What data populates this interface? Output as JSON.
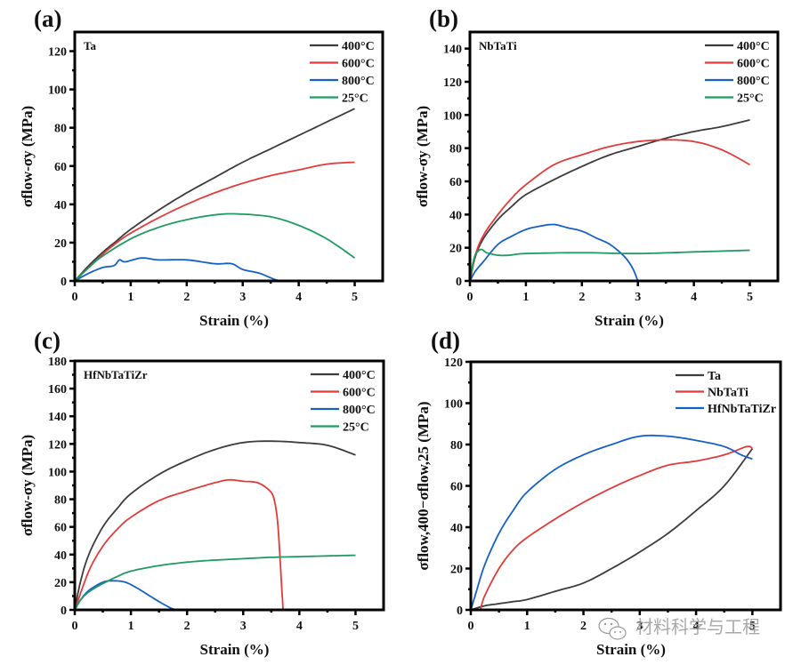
{
  "figure": {
    "watermark": "材料科学与工程",
    "colors": {
      "400": "#3c3c3c",
      "600": "#e23b3b",
      "800": "#1560c8",
      "25": "#1f9a62"
    }
  },
  "chart_data": [
    {
      "type": "line",
      "panel_label": "(a)",
      "inset_label": "Ta",
      "title": "",
      "xlabel": "Strain (%)",
      "ylabel": "σflow-σy (MPa)",
      "xlim": [
        0,
        5.5
      ],
      "ylim": [
        0,
        130
      ],
      "xticks": [
        0,
        1,
        2,
        3,
        4,
        5
      ],
      "yticks": [
        0,
        20,
        40,
        60,
        80,
        100,
        120
      ],
      "legend_position": "top-right",
      "series": [
        {
          "name": "400°C",
          "color": "#3c3c3c",
          "x": [
            0,
            0.25,
            0.5,
            0.75,
            1,
            1.5,
            2,
            2.5,
            3,
            3.5,
            4,
            4.5,
            5
          ],
          "y": [
            0,
            8,
            15,
            21,
            27,
            37,
            46,
            54,
            62,
            69,
            76,
            83,
            90
          ]
        },
        {
          "name": "600°C",
          "color": "#e23b3b",
          "x": [
            0,
            0.25,
            0.5,
            0.75,
            1,
            1.5,
            2,
            2.5,
            3,
            3.5,
            4,
            4.5,
            5
          ],
          "y": [
            0,
            7,
            14,
            20,
            25,
            33,
            40,
            46,
            51,
            55,
            58,
            61,
            62
          ]
        },
        {
          "name": "800°C",
          "color": "#1560c8",
          "x": [
            0,
            0.25,
            0.5,
            0.7,
            0.8,
            0.9,
            1.2,
            1.5,
            2,
            2.5,
            2.8,
            3,
            3.3,
            3.6,
            3.75
          ],
          "y": [
            0,
            4,
            7,
            8,
            11,
            10,
            12,
            11,
            11,
            9,
            9,
            6,
            4,
            0.5,
            0
          ]
        },
        {
          "name": "25°C",
          "color": "#1f9a62",
          "x": [
            0,
            0.25,
            0.5,
            1,
            1.5,
            2,
            2.5,
            2.9,
            3.5,
            4,
            4.5,
            5
          ],
          "y": [
            0,
            7,
            13,
            22,
            28,
            32,
            34.5,
            35,
            33.5,
            29,
            22,
            12
          ]
        }
      ]
    },
    {
      "type": "line",
      "panel_label": "(b)",
      "inset_label": "NbTaTi",
      "title": "",
      "xlabel": "Strain (%)",
      "ylabel": "σflow-σy (MPa)",
      "xlim": [
        0,
        5.5
      ],
      "ylim": [
        0,
        150
      ],
      "xticks": [
        0,
        1,
        2,
        3,
        4,
        5
      ],
      "yticks": [
        0,
        20,
        40,
        60,
        80,
        100,
        120,
        140
      ],
      "legend_position": "top-right",
      "series": [
        {
          "name": "400°C",
          "color": "#3c3c3c",
          "x": [
            0,
            0.1,
            0.25,
            0.5,
            0.75,
            1,
            1.5,
            2,
            2.5,
            3,
            3.5,
            4,
            4.5,
            5
          ],
          "y": [
            0,
            15,
            26,
            37,
            45,
            52,
            61,
            69,
            76,
            81,
            86,
            90,
            93,
            97
          ]
        },
        {
          "name": "600°C",
          "color": "#e23b3b",
          "x": [
            0,
            0.1,
            0.25,
            0.5,
            0.75,
            1,
            1.5,
            2,
            2.5,
            3,
            3.5,
            4,
            4.5,
            5
          ],
          "y": [
            0,
            16,
            28,
            40,
            50,
            58,
            70,
            76,
            81,
            84,
            85,
            84,
            79,
            70
          ]
        },
        {
          "name": "800°C",
          "color": "#1560c8",
          "x": [
            0,
            0.1,
            0.25,
            0.5,
            0.75,
            1,
            1.25,
            1.5,
            1.75,
            2,
            2.25,
            2.5,
            2.75,
            2.9,
            3.0
          ],
          "y": [
            0,
            6,
            12,
            22,
            27,
            31,
            33,
            34,
            32,
            30,
            26,
            22,
            15,
            8,
            0
          ]
        },
        {
          "name": "25°C",
          "color": "#1f9a62",
          "x": [
            0,
            0.05,
            0.1,
            0.2,
            0.3,
            0.5,
            0.7,
            1,
            2,
            3,
            4,
            5
          ],
          "y": [
            0,
            10,
            16,
            19,
            17,
            15.5,
            15.5,
            16.5,
            17,
            16.5,
            17.5,
            18.5
          ]
        }
      ]
    },
    {
      "type": "line",
      "panel_label": "(c)",
      "inset_label": "HfNbTaTiZr",
      "title": "",
      "xlabel": "Strain (%)",
      "ylabel": "σflow-σy (MPa)",
      "xlim": [
        0,
        5.5
      ],
      "ylim": [
        0,
        180
      ],
      "xticks": [
        0,
        1,
        2,
        3,
        4,
        5
      ],
      "yticks": [
        0,
        20,
        40,
        60,
        80,
        100,
        120,
        140,
        160,
        180
      ],
      "legend_position": "top-right",
      "series": [
        {
          "name": "400°C",
          "color": "#3c3c3c",
          "x": [
            0,
            0.1,
            0.25,
            0.5,
            0.75,
            1,
            1.5,
            2,
            2.5,
            3,
            3.5,
            4,
            4.5,
            5
          ],
          "y": [
            0,
            20,
            40,
            60,
            73,
            84,
            98,
            108,
            116,
            121,
            122,
            121,
            119,
            112
          ]
        },
        {
          "name": "600°C",
          "color": "#e23b3b",
          "x": [
            0,
            0.25,
            0.5,
            0.75,
            1,
            1.5,
            2,
            2.5,
            2.75,
            3,
            3.25,
            3.45,
            3.55,
            3.62,
            3.68,
            3.71
          ],
          "y": [
            0,
            28,
            46,
            58,
            67,
            79,
            86,
            92,
            94,
            93,
            92,
            87,
            80,
            60,
            20,
            0
          ]
        },
        {
          "name": "800°C",
          "color": "#1560c8",
          "x": [
            0,
            0.1,
            0.25,
            0.5,
            0.7,
            0.9,
            1.1,
            1.3,
            1.5,
            1.7,
            1.8
          ],
          "y": [
            0,
            7,
            14,
            20,
            21,
            20,
            16,
            11,
            6,
            1.5,
            0
          ]
        },
        {
          "name": "25°C",
          "color": "#1f9a62",
          "x": [
            0,
            0.1,
            0.25,
            0.5,
            0.75,
            1,
            1.5,
            2,
            2.5,
            3,
            3.5,
            4,
            4.5,
            5
          ],
          "y": [
            0,
            7,
            13,
            19,
            24,
            28,
            32,
            34.5,
            36,
            37,
            38,
            38.5,
            39,
            39.5
          ]
        }
      ]
    },
    {
      "type": "line",
      "panel_label": "(d)",
      "inset_label": "",
      "title": "",
      "xlabel": "Strain (%)",
      "ylabel": "σflow,400−σflow,25 (MPa)",
      "xlim": [
        0,
        5.5
      ],
      "ylim": [
        0,
        120
      ],
      "xticks": [
        0,
        1,
        2,
        3,
        4,
        5
      ],
      "yticks": [
        0,
        20,
        40,
        60,
        80,
        100,
        120
      ],
      "legend_position": "top-right",
      "series": [
        {
          "name": "Ta",
          "color": "#3c3c3c",
          "x": [
            0,
            0.25,
            0.5,
            0.75,
            1,
            1.5,
            2,
            2.5,
            3,
            3.5,
            4,
            4.5,
            5
          ],
          "y": [
            0,
            2,
            3,
            4,
            5,
            9,
            13,
            20,
            28,
            37,
            48,
            60,
            78
          ]
        },
        {
          "name": "NbTaTi",
          "color": "#e23b3b",
          "x": [
            0.17,
            0.25,
            0.5,
            0.75,
            1,
            1.5,
            2,
            2.5,
            3,
            3.5,
            4,
            4.5,
            4.9,
            5
          ],
          "y": [
            0,
            7,
            20,
            29,
            35,
            44,
            52,
            59,
            65,
            70,
            72,
            75,
            79,
            78
          ]
        },
        {
          "name": "HfNbTaTiZr",
          "color": "#1560c8",
          "x": [
            0,
            0.1,
            0.25,
            0.5,
            0.75,
            1,
            1.5,
            2,
            2.5,
            3,
            3.5,
            4,
            4.5,
            4.8,
            5
          ],
          "y": [
            0,
            9,
            22,
            37,
            48,
            57,
            68,
            75,
            80,
            84,
            84,
            82,
            79,
            75,
            73
          ]
        }
      ]
    }
  ]
}
